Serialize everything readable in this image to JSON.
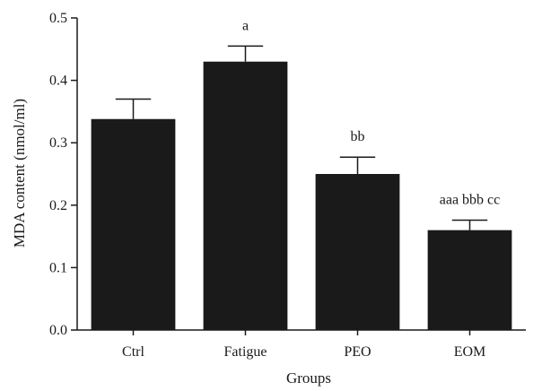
{
  "chart_data": {
    "type": "bar",
    "categories": [
      "Ctrl",
      "Fatigue",
      "PEO",
      "EOM"
    ],
    "values": [
      0.338,
      0.43,
      0.25,
      0.16
    ],
    "errors": [
      0.032,
      0.025,
      0.027,
      0.016
    ],
    "annotations": [
      "",
      "a",
      "bb",
      "aaa bbb cc"
    ],
    "xlabel": "Groups",
    "ylabel": "MDA content (nmol/ml)",
    "ylim": [
      0,
      0.5
    ],
    "yticks": [
      "0.0",
      "0.1",
      "0.2",
      "0.3",
      "0.4",
      "0.5"
    ],
    "grid": false,
    "bar_color": "#1a1a1a"
  }
}
